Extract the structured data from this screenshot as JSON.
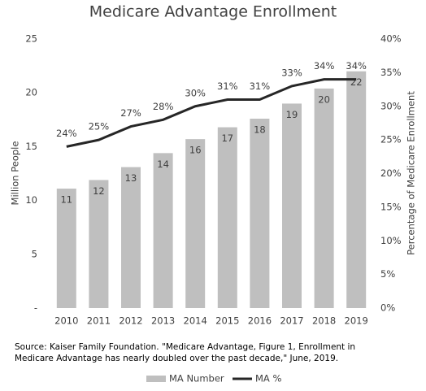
{
  "chart_data": {
    "type": "bar",
    "title": "Medicare Advantage Enrollment",
    "ylabel": "Million People",
    "y2label": "Percentage of Medicare Enrollment",
    "categories": [
      "2010",
      "2011",
      "2012",
      "2013",
      "2014",
      "2015",
      "2016",
      "2017",
      "2018",
      "2019"
    ],
    "series": [
      {
        "name": "MA Number",
        "type": "bar",
        "color": "#bfbfbf",
        "values": [
          11.1,
          11.9,
          13.1,
          14.4,
          15.7,
          16.8,
          17.6,
          19.0,
          20.4,
          22.0
        ],
        "value_labels": [
          "11",
          "12",
          "13",
          "14",
          "16",
          "17",
          "18",
          "19",
          "20",
          "22"
        ]
      },
      {
        "name": "MA %",
        "type": "line",
        "color": "#262626",
        "axis": "y2",
        "values": [
          24,
          25,
          27,
          28,
          30,
          31,
          31,
          33,
          34,
          34
        ],
        "value_labels": [
          "24%",
          "25%",
          "27%",
          "28%",
          "30%",
          "31%",
          "31%",
          "33%",
          "34%",
          "34%"
        ]
      }
    ],
    "ylim": [
      0,
      25
    ],
    "yticks": [
      {
        "value": 0,
        "label": "-"
      },
      5,
      10,
      15,
      20,
      25
    ],
    "y2lim": [
      0,
      40
    ],
    "y2ticks": [
      {
        "value": 0,
        "label": "0%"
      },
      {
        "value": 5,
        "label": "5%"
      },
      {
        "value": 10,
        "label": "10%"
      },
      {
        "value": 15,
        "label": "15%"
      },
      {
        "value": 20,
        "label": "20%"
      },
      {
        "value": 25,
        "label": "25%"
      },
      {
        "value": 30,
        "label": "30%"
      },
      {
        "value": 35,
        "label": "35%"
      },
      {
        "value": 40,
        "label": "40%"
      }
    ],
    "grid": false,
    "legend": "bottom",
    "source": [
      "Source: Kaiser Family Foundation. \"Medicare Advantage, Figure 1, Enrollment in",
      "Medicare Advantage has nearly doubled over the past decade,\" June, 2019."
    ]
  }
}
